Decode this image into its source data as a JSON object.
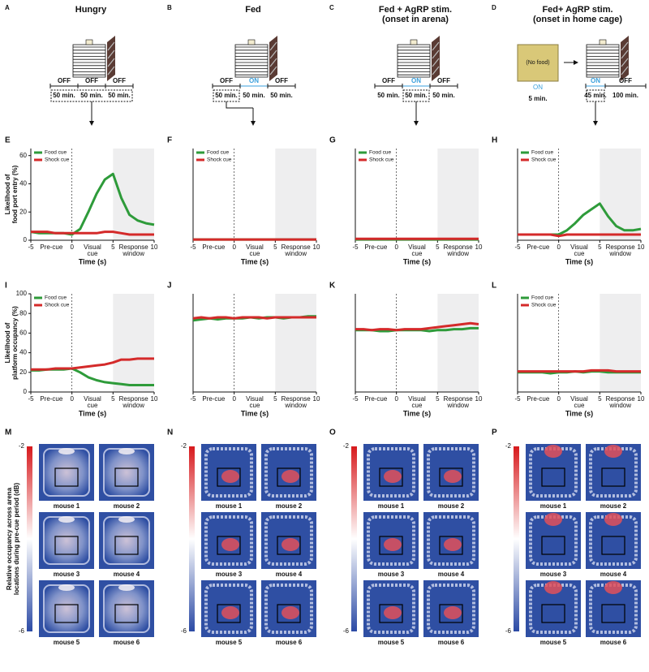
{
  "schematics": [
    {
      "letter": "A",
      "title": [
        "Hungry"
      ],
      "segments": [
        {
          "state": "OFF",
          "duration": "50 min."
        },
        {
          "state": "OFF",
          "duration": "50 min."
        },
        {
          "state": "OFF",
          "duration": "50 min."
        }
      ]
    },
    {
      "letter": "B",
      "title": [
        "Fed"
      ],
      "segments": [
        {
          "state": "OFF",
          "duration": "50 min."
        },
        {
          "state": "ON",
          "duration": "50 min."
        },
        {
          "state": "OFF",
          "duration": "50 min."
        }
      ]
    },
    {
      "letter": "C",
      "title": [
        "Fed + AgRP stim.",
        "(onset in arena)"
      ],
      "segments": [
        {
          "state": "OFF",
          "duration": "50 min."
        },
        {
          "state": "ON",
          "duration": "50 min."
        },
        {
          "state": "OFF",
          "duration": "50 min."
        }
      ]
    },
    {
      "letter": "D",
      "title": [
        "Fed+ AgRP stim.",
        "(onset in home cage)"
      ],
      "home_cage": {
        "label": "(No food)",
        "state": "ON",
        "duration": "5 min."
      },
      "segments": [
        {
          "state": "ON",
          "duration": "45 min."
        },
        {
          "state": "OFF",
          "duration": "100 min."
        }
      ]
    }
  ],
  "chart_data": [
    {
      "type": "line",
      "letter": "E",
      "ylabel": [
        "Likelihood of",
        "food port entry (%)"
      ],
      "xlabel": "Time (s)",
      "xlim": [
        -5,
        10
      ],
      "xticks": [
        -5,
        0,
        5,
        10
      ],
      "ylim": [
        0,
        65
      ],
      "yticks": [
        0,
        20,
        40,
        60
      ],
      "shade": [
        5,
        10
      ],
      "cue_onset": 0,
      "legend": "upper left",
      "phase_labels": [
        [
          "Pre-cue"
        ],
        [
          "Visual",
          "cue"
        ],
        [
          "Response",
          "window"
        ]
      ],
      "x": [
        -5,
        -4,
        -3,
        -2,
        -1,
        0,
        1,
        2,
        3,
        4,
        5,
        6,
        7,
        8,
        9,
        10
      ],
      "series": [
        {
          "name": "Food cue",
          "color": "#2e9b3a",
          "values": [
            6,
            5,
            5,
            5,
            5,
            4,
            8,
            20,
            33,
            43,
            47,
            30,
            18,
            14,
            12,
            11
          ]
        },
        {
          "name": "Shock cue",
          "color": "#d42a2a",
          "values": [
            6,
            6,
            6,
            5,
            5,
            5,
            5,
            5,
            5,
            6,
            6,
            5,
            4,
            4,
            4,
            4
          ]
        }
      ]
    },
    {
      "type": "line",
      "letter": "F",
      "xlabel": "Time (s)",
      "xlim": [
        -5,
        10
      ],
      "xticks": [
        -5,
        0,
        5,
        10
      ],
      "ylim": [
        0,
        65
      ],
      "shade": [
        5,
        10
      ],
      "cue_onset": 0,
      "legend": "upper left",
      "phase_labels": [
        [
          "Pre-cue"
        ],
        [
          "Visual",
          "cue"
        ],
        [
          "Response",
          "window"
        ]
      ],
      "x": [
        -5,
        -4,
        -3,
        -2,
        -1,
        0,
        1,
        2,
        3,
        4,
        5,
        6,
        7,
        8,
        9,
        10
      ],
      "series": [
        {
          "name": "Food cue",
          "color": "#2e9b3a",
          "values": [
            0.5,
            0.5,
            0.5,
            0.5,
            0.5,
            0.5,
            0.5,
            0.5,
            0.5,
            0.5,
            0.5,
            0.5,
            0.5,
            0.5,
            0.5,
            0.5
          ]
        },
        {
          "name": "Shock cue",
          "color": "#d42a2a",
          "values": [
            0.5,
            0.5,
            0.5,
            0.5,
            0.5,
            0.5,
            0.5,
            0.5,
            0.5,
            0.5,
            0.5,
            0.5,
            0.5,
            0.5,
            0.5,
            0.5
          ]
        }
      ]
    },
    {
      "type": "line",
      "letter": "G",
      "xlabel": "Time (s)",
      "xlim": [
        -5,
        10
      ],
      "xticks": [
        -5,
        0,
        5,
        10
      ],
      "ylim": [
        0,
        65
      ],
      "shade": [
        5,
        10
      ],
      "cue_onset": 0,
      "legend": "upper left",
      "phase_labels": [
        [
          "Pre-cue"
        ],
        [
          "Visual",
          "cue"
        ],
        [
          "Response",
          "window"
        ]
      ],
      "x": [
        -5,
        -4,
        -3,
        -2,
        -1,
        0,
        1,
        2,
        3,
        4,
        5,
        6,
        7,
        8,
        9,
        10
      ],
      "series": [
        {
          "name": "Food cue",
          "color": "#2e9b3a",
          "values": [
            0.5,
            0.5,
            0.5,
            0.5,
            0.5,
            0.5,
            0.5,
            0.5,
            0.5,
            0.5,
            0.5,
            0.5,
            0.5,
            0.5,
            0.5,
            0.5
          ]
        },
        {
          "name": "Shock cue",
          "color": "#d42a2a",
          "values": [
            1,
            1,
            1,
            1,
            1,
            1,
            1,
            1,
            1,
            1,
            1,
            1,
            1,
            1,
            1,
            1
          ]
        }
      ]
    },
    {
      "type": "line",
      "letter": "H",
      "xlabel": "Time (s)",
      "xlim": [
        -5,
        10
      ],
      "xticks": [
        -5,
        0,
        5,
        10
      ],
      "ylim": [
        0,
        65
      ],
      "shade": [
        5,
        10
      ],
      "cue_onset": 0,
      "legend": "upper left",
      "phase_labels": [
        [
          "Pre-cue"
        ],
        [
          "Visual",
          "cue"
        ],
        [
          "Response",
          "window"
        ]
      ],
      "x": [
        -5,
        -4,
        -3,
        -2,
        -1,
        0,
        1,
        2,
        3,
        4,
        5,
        6,
        7,
        8,
        9,
        10
      ],
      "series": [
        {
          "name": "Food cue",
          "color": "#2e9b3a",
          "values": [
            4,
            4,
            4,
            4,
            4,
            4,
            7,
            12,
            18,
            22,
            26,
            17,
            10,
            7,
            7,
            8
          ]
        },
        {
          "name": "Shock cue",
          "color": "#d42a2a",
          "values": [
            4,
            4,
            4,
            4,
            4,
            3,
            4,
            4,
            4,
            4,
            4,
            4,
            4,
            4,
            4,
            4
          ]
        }
      ]
    },
    {
      "type": "line",
      "letter": "I",
      "ylabel": [
        "Likelihood of",
        "platform occupancy (%)"
      ],
      "xlabel": "Time (s)",
      "xlim": [
        -5,
        10
      ],
      "xticks": [
        -5,
        0,
        5,
        10
      ],
      "ylim": [
        0,
        100
      ],
      "yticks": [
        0,
        20,
        40,
        60,
        80,
        100
      ],
      "shade": [
        5,
        10
      ],
      "cue_onset": 0,
      "legend": "upper left",
      "phase_labels": [
        [
          "Pre-cue"
        ],
        [
          "Visual",
          "cue"
        ],
        [
          "Response",
          "window"
        ]
      ],
      "x": [
        -5,
        -4,
        -3,
        -2,
        -1,
        0,
        1,
        2,
        3,
        4,
        5,
        6,
        7,
        8,
        9,
        10
      ],
      "series": [
        {
          "name": "Food cue",
          "color": "#2e9b3a",
          "values": [
            22,
            22,
            23,
            23,
            23,
            24,
            20,
            15,
            12,
            10,
            9,
            8,
            7,
            7,
            7,
            7
          ]
        },
        {
          "name": "Shock cue",
          "color": "#d42a2a",
          "values": [
            23,
            23,
            23,
            24,
            24,
            24,
            25,
            26,
            27,
            28,
            30,
            33,
            33,
            34,
            34,
            34
          ]
        }
      ]
    },
    {
      "type": "line",
      "letter": "J",
      "xlabel": "Time (s)",
      "xlim": [
        -5,
        10
      ],
      "xticks": [
        -5,
        0,
        5,
        10
      ],
      "ylim": [
        0,
        100
      ],
      "shade": [
        5,
        10
      ],
      "cue_onset": 0,
      "phase_labels": [
        [
          "Pre-cue"
        ],
        [
          "Visual",
          "cue"
        ],
        [
          "Response",
          "window"
        ]
      ],
      "x": [
        -5,
        -4,
        -3,
        -2,
        -1,
        0,
        1,
        2,
        3,
        4,
        5,
        6,
        7,
        8,
        9,
        10
      ],
      "series": [
        {
          "color": "#2e9b3a",
          "values": [
            73,
            74,
            75,
            74,
            75,
            75,
            75,
            76,
            75,
            76,
            76,
            75,
            76,
            76,
            77,
            77
          ]
        },
        {
          "color": "#d42a2a",
          "values": [
            75,
            76,
            75,
            76,
            76,
            75,
            76,
            76,
            76,
            75,
            76,
            76,
            76,
            76,
            76,
            76
          ]
        }
      ]
    },
    {
      "type": "line",
      "letter": "K",
      "xlabel": "Time (s)",
      "xlim": [
        -5,
        10
      ],
      "xticks": [
        -5,
        0,
        5,
        10
      ],
      "ylim": [
        0,
        100
      ],
      "shade": [
        5,
        10
      ],
      "cue_onset": 0,
      "phase_labels": [
        [
          "Pre-cue"
        ],
        [
          "Visual",
          "cue"
        ],
        [
          "Response",
          "window"
        ]
      ],
      "x": [
        -5,
        -4,
        -3,
        -2,
        -1,
        0,
        1,
        2,
        3,
        4,
        5,
        6,
        7,
        8,
        9,
        10
      ],
      "series": [
        {
          "color": "#2e9b3a",
          "values": [
            63,
            63,
            63,
            62,
            62,
            63,
            63,
            63,
            63,
            62,
            63,
            63,
            64,
            64,
            65,
            65
          ]
        },
        {
          "color": "#d42a2a",
          "values": [
            64,
            64,
            63,
            64,
            64,
            63,
            64,
            64,
            64,
            65,
            66,
            67,
            68,
            69,
            70,
            69
          ]
        }
      ]
    },
    {
      "type": "line",
      "letter": "L",
      "xlabel": "Time (s)",
      "xlim": [
        -5,
        10
      ],
      "xticks": [
        -5,
        0,
        5,
        10
      ],
      "ylim": [
        0,
        100
      ],
      "shade": [
        5,
        10
      ],
      "cue_onset": 0,
      "legend": "upper left",
      "phase_labels": [
        [
          "Pre-cue"
        ],
        [
          "Visual",
          "cue"
        ],
        [
          "Response",
          "window"
        ]
      ],
      "x": [
        -5,
        -4,
        -3,
        -2,
        -1,
        0,
        1,
        2,
        3,
        4,
        5,
        6,
        7,
        8,
        9,
        10
      ],
      "series": [
        {
          "name": "Food cue",
          "color": "#2e9b3a",
          "values": [
            20,
            20,
            20,
            20,
            19,
            20,
            20,
            21,
            20,
            21,
            21,
            20,
            20,
            20,
            20,
            20
          ]
        },
        {
          "name": "Shock cue",
          "color": "#d42a2a",
          "values": [
            21,
            21,
            21,
            21,
            21,
            21,
            21,
            21,
            21,
            22,
            22,
            22,
            21,
            21,
            21,
            21
          ]
        }
      ]
    }
  ],
  "heatmaps": [
    {
      "letter": "M",
      "ylabel": [
        "Relative occupancy across arena",
        "locations during pre-cue period (dB)"
      ],
      "colorbar_ticks": [
        -2,
        -6
      ],
      "mice": [
        "mouse 1",
        "mouse 2",
        "mouse 3",
        "mouse 4",
        "mouse 5",
        "mouse 6"
      ]
    },
    {
      "letter": "N",
      "colorbar_ticks": [
        -2,
        -6
      ],
      "mice": [
        "mouse 1",
        "mouse 2",
        "mouse 3",
        "mouse 4",
        "mouse 5",
        "mouse 6"
      ]
    },
    {
      "letter": "O",
      "colorbar_ticks": [
        -2,
        -6
      ],
      "mice": [
        "mouse 1",
        "mouse 2",
        "mouse 3",
        "mouse 4",
        "mouse 5",
        "mouse 6"
      ]
    },
    {
      "letter": "P",
      "colorbar_ticks": [
        -2,
        -6
      ],
      "mice": [
        "mouse 1",
        "mouse 2",
        "mouse 3",
        "mouse 4",
        "mouse 5",
        "mouse 6"
      ]
    }
  ]
}
